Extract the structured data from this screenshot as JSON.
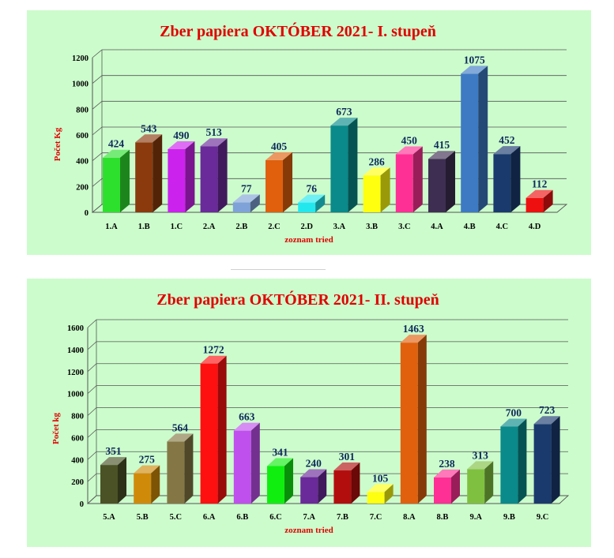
{
  "chart_data": [
    {
      "type": "bar",
      "title": "Zber papiera OKTÓBER 2021- I. stupeň",
      "xlabel": "zoznam tried",
      "ylabel": "Počet Kg",
      "ylim": [
        0,
        1200
      ],
      "yticks": [
        0,
        200,
        400,
        600,
        800,
        1000,
        1200
      ],
      "grid": true,
      "legend": "none",
      "categories": [
        "1.A",
        "1.B",
        "1.C",
        "2.A",
        "2.B",
        "2.C",
        "2.D",
        "3.A",
        "3.B",
        "3.C",
        "4.A",
        "4.B",
        "4.C",
        "4.D"
      ],
      "values": [
        424,
        543,
        490,
        513,
        77,
        405,
        76,
        673,
        286,
        450,
        415,
        1075,
        452,
        112
      ],
      "colors": [
        "#2ee02e",
        "#8b3a0e",
        "#cc22ee",
        "#6a2a9a",
        "#7fa2d8",
        "#e0600e",
        "#22e8ee",
        "#0a8a8a",
        "#ffff10",
        "#ff3095",
        "#3e2e52",
        "#3e7ac4",
        "#1a3a6e",
        "#ee1010"
      ]
    },
    {
      "type": "bar",
      "title": "Zber papiera OKTÓBER 2021- II. stupeň",
      "xlabel": "zoznam tried",
      "ylabel": "Počet kg",
      "ylim": [
        0,
        1600
      ],
      "yticks": [
        0,
        200,
        400,
        600,
        800,
        1000,
        1200,
        1400,
        1600
      ],
      "grid": true,
      "legend": "none",
      "categories": [
        "5.A",
        "5.B",
        "5.C",
        "6.A",
        "6.B",
        "6.C",
        "7.A",
        "7.B",
        "7.C",
        "8.A",
        "8.B",
        "9.A",
        "9.B",
        "9.C"
      ],
      "values": [
        351,
        275,
        564,
        1272,
        663,
        341,
        240,
        301,
        105,
        1463,
        238,
        313,
        700,
        723
      ],
      "colors": [
        "#4a5226",
        "#d08a0a",
        "#857745",
        "#ff1010",
        "#c050ee",
        "#10ee10",
        "#6a2a9a",
        "#b20e0e",
        "#ffff10",
        "#e0600e",
        "#ff3095",
        "#80c040",
        "#0a8a8a",
        "#1a3a6e"
      ]
    }
  ]
}
